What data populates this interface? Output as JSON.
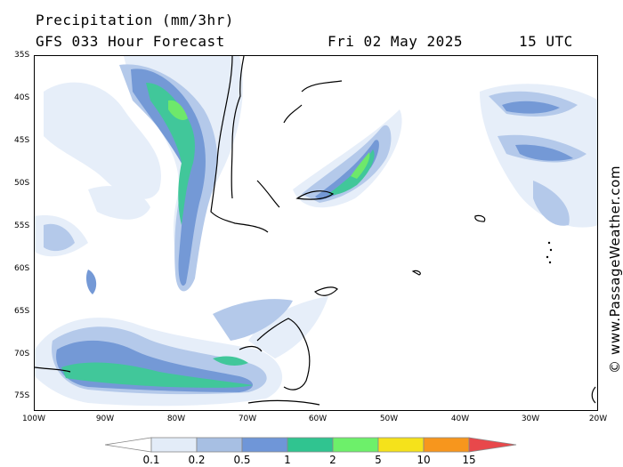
{
  "header": {
    "title": "Precipitation (mm/3hr)",
    "model": "GFS 033 Hour Forecast",
    "date": "Fri 02 May 2025",
    "time": "15 UTC"
  },
  "watermark": "© www.PassageWeather.com",
  "axes": {
    "latitude_labels": [
      "35S",
      "40S",
      "45S",
      "50S",
      "55S",
      "60S",
      "65S",
      "70S",
      "75S"
    ],
    "longitude_labels": [
      "100W",
      "90W",
      "80W",
      "70W",
      "60W",
      "50W",
      "40W",
      "30W",
      "20W"
    ]
  },
  "legend": {
    "levels": [
      "0.1",
      "0.2",
      "0.5",
      "1",
      "2",
      "5",
      "10",
      "15"
    ],
    "colors": [
      "#ffffff",
      "#e3ecf8",
      "#a7bfe3",
      "#6f96d8",
      "#30c490",
      "#6df06a",
      "#f5e21b",
      "#f7961d",
      "#e8484b"
    ]
  },
  "precip_colors": {
    "very_light": "#e6eef9",
    "light": "#b4c9ea",
    "moderate": "#7499d6",
    "heavy": "#41c79a",
    "very_heavy": "#6ee86b"
  }
}
